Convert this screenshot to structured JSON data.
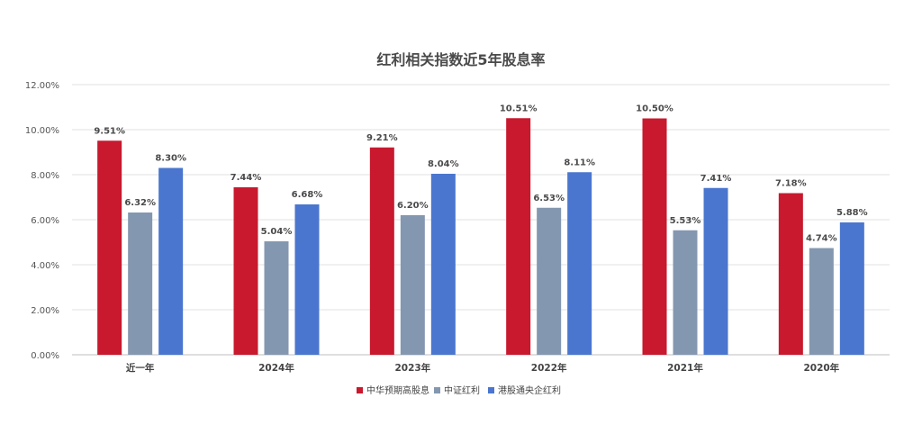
{
  "chart_data": {
    "type": "bar",
    "title": "红利相关指数近5年股息率",
    "categories": [
      "近一年",
      "2024年",
      "2023年",
      "2022年",
      "2021年",
      "2020年"
    ],
    "series": [
      {
        "name": "中华预期高股息",
        "color": "#C8192E",
        "values": [
          9.51,
          7.44,
          9.21,
          10.51,
          10.5,
          7.18
        ]
      },
      {
        "name": "中证红利",
        "color": "#8497B0",
        "values": [
          6.32,
          5.04,
          6.2,
          6.53,
          5.53,
          4.74
        ]
      },
      {
        "name": "港股通央企红利",
        "color": "#4A76CF",
        "values": [
          8.3,
          6.68,
          8.04,
          8.11,
          7.41,
          5.88
        ]
      }
    ],
    "data_labels": [
      [
        "9.51%",
        "7.44%",
        "9.21%",
        "10.51%",
        "10.50%",
        "7.18%"
      ],
      [
        "6.32%",
        "5.04%",
        "6.20%",
        "6.53%",
        "5.53%",
        "4.74%"
      ],
      [
        "8.30%",
        "6.68%",
        "8.04%",
        "8.11%",
        "7.41%",
        "5.88%"
      ]
    ],
    "yticks": [
      0,
      2,
      4,
      6,
      8,
      10,
      12
    ],
    "ytick_labels": [
      "0.00%",
      "2.00%",
      "4.00%",
      "6.00%",
      "8.00%",
      "10.00%",
      "12.00%"
    ],
    "ylim": [
      0,
      12
    ],
    "grid": true,
    "legend_position": "bottom"
  }
}
